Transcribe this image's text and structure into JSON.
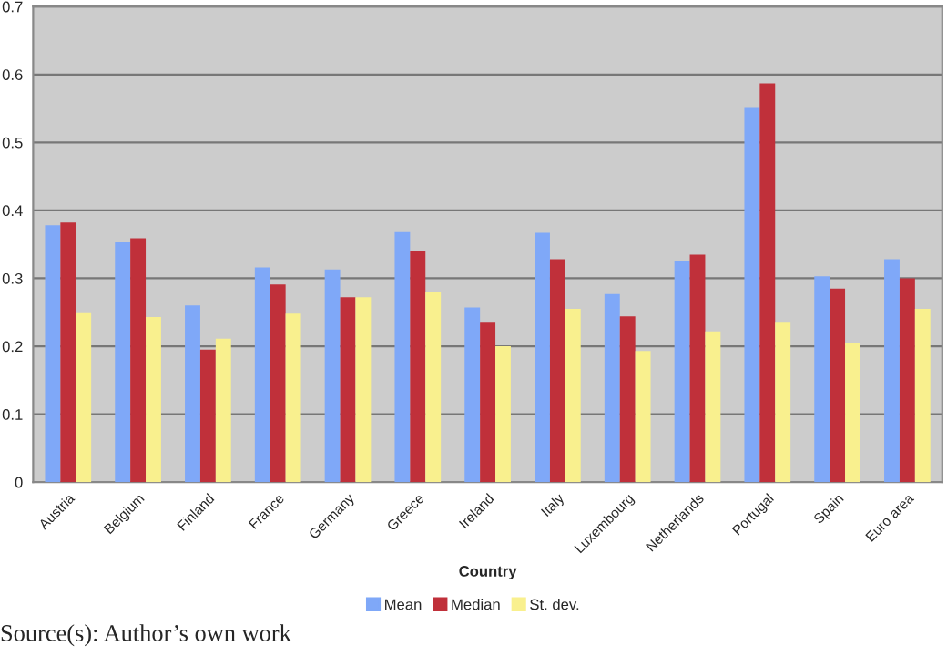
{
  "chart_data": {
    "type": "bar",
    "xlabel": "Country",
    "categories": [
      "Austria",
      "Belgium",
      "Finland",
      "France",
      "Germany",
      "Greece",
      "Ireland",
      "Italy",
      "Luxembourg",
      "Netherlands",
      "Portugal",
      "Spain",
      "Euro area"
    ],
    "series": [
      {
        "name": "Mean",
        "color": "#7fa8f8",
        "values": [
          0.378,
          0.353,
          0.26,
          0.316,
          0.313,
          0.368,
          0.257,
          0.367,
          0.277,
          0.325,
          0.552,
          0.303,
          0.328
        ]
      },
      {
        "name": "Median",
        "color": "#c0303a",
        "values": [
          0.382,
          0.359,
          0.195,
          0.291,
          0.272,
          0.341,
          0.236,
          0.328,
          0.244,
          0.335,
          0.587,
          0.285,
          0.3
        ]
      },
      {
        "name": "St. dev.",
        "color": "#f9f08e",
        "values": [
          0.25,
          0.243,
          0.211,
          0.248,
          0.272,
          0.28,
          0.2,
          0.255,
          0.193,
          0.222,
          0.236,
          0.204,
          0.255
        ]
      }
    ],
    "ylim": [
      0,
      0.7
    ],
    "yticks": [
      0,
      0.1,
      0.2,
      0.3,
      0.4,
      0.5,
      0.6,
      0.7
    ],
    "grid": "y",
    "legend": "bottom",
    "annotations": [
      "Source(s): Author’s own work"
    ]
  }
}
